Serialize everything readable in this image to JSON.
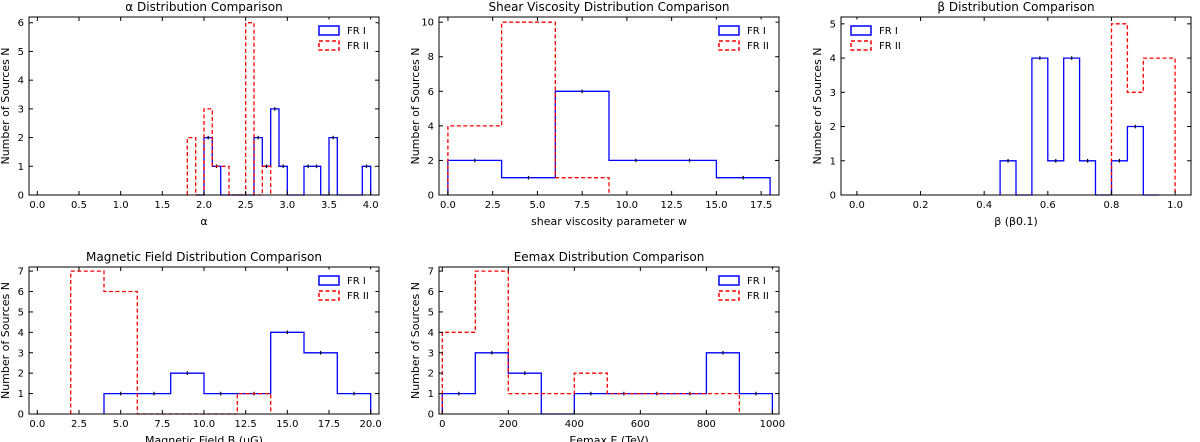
{
  "series_style": {
    "fr1_color": "#0000ff",
    "fr2_color": "#ff0000"
  },
  "chart_data": [
    {
      "type": "histogram",
      "title": "α Distribution Comparison",
      "xlabel": "α",
      "ylabel": "Number of Sources N",
      "xlim": [
        -0.1,
        4.1
      ],
      "ylim": [
        0,
        6.2
      ],
      "xticks": [
        0.0,
        0.5,
        1.0,
        1.5,
        2.0,
        2.5,
        3.0,
        3.5,
        4.0
      ],
      "xtick_labels": [
        "0.0",
        "0.5",
        "1.0",
        "1.5",
        "2.0",
        "2.5",
        "3.0",
        "3.5",
        "4.0"
      ],
      "yticks": [
        0,
        1,
        2,
        3,
        4,
        5,
        6
      ],
      "ytick_labels": [
        "0",
        "1",
        "2",
        "3",
        "4",
        "5",
        "6"
      ],
      "legend": {
        "position": "top-right",
        "entries": [
          "FR I",
          "FR II"
        ]
      },
      "series": [
        {
          "name": "FR I",
          "style": "solid",
          "bins": [
            1.9,
            2.0,
            2.1,
            2.2,
            2.3,
            2.4,
            2.5,
            2.6,
            2.7,
            2.8,
            2.9,
            3.0,
            3.1,
            3.2,
            3.3,
            3.4,
            3.5,
            3.6,
            3.7,
            3.8,
            3.9,
            4.0
          ],
          "counts": [
            0,
            2,
            1,
            0,
            0,
            0,
            0,
            2,
            1,
            3,
            1,
            0,
            0,
            1,
            1,
            0,
            2,
            0,
            0,
            0,
            1
          ]
        },
        {
          "name": "FR II",
          "style": "dashed",
          "bins": [
            1.8,
            1.9,
            2.0,
            2.1,
            2.2,
            2.3,
            2.4,
            2.5,
            2.6,
            2.7,
            2.8
          ],
          "counts": [
            2,
            0,
            3,
            1,
            1,
            0,
            0,
            6,
            0,
            1
          ]
        }
      ]
    },
    {
      "type": "histogram",
      "title": "Shear Viscosity Distribution Comparison",
      "xlabel": "shear viscosity parameter w",
      "ylabel": "Number of Sources N",
      "xlim": [
        -0.5,
        18.5
      ],
      "ylim": [
        0,
        10.3
      ],
      "xticks": [
        0.0,
        2.5,
        5.0,
        7.5,
        10.0,
        12.5,
        15.0,
        17.5
      ],
      "xtick_labels": [
        "0.0",
        "2.5",
        "5.0",
        "7.5",
        "10.0",
        "12.5",
        "15.0",
        "17.5"
      ],
      "yticks": [
        0,
        2,
        4,
        6,
        8,
        10
      ],
      "ytick_labels": [
        "0",
        "2",
        "4",
        "6",
        "8",
        "10"
      ],
      "legend": {
        "position": "top-right",
        "entries": [
          "FR I",
          "FR II"
        ]
      },
      "series": [
        {
          "name": "FR I",
          "style": "solid",
          "bins": [
            0,
            3,
            6,
            9,
            12,
            15,
            18
          ],
          "counts": [
            2,
            1,
            6,
            2,
            2,
            1
          ]
        },
        {
          "name": "FR II",
          "style": "dashed",
          "bins": [
            0,
            3,
            6,
            9
          ],
          "counts": [
            4,
            10,
            1
          ]
        }
      ]
    },
    {
      "type": "histogram",
      "title": "β Distribution Comparison",
      "xlabel": "β (β0.1)",
      "ylabel": "Number of Sources N",
      "xlim": [
        -0.05,
        1.05
      ],
      "ylim": [
        0,
        5.2
      ],
      "xticks": [
        0.0,
        0.2,
        0.4,
        0.6,
        0.8,
        1.0
      ],
      "xtick_labels": [
        "0.0",
        "0.2",
        "0.4",
        "0.6",
        "0.8",
        "1.0"
      ],
      "yticks": [
        0,
        1,
        2,
        3,
        4,
        5
      ],
      "ytick_labels": [
        "0",
        "1",
        "2",
        "3",
        "4",
        "5"
      ],
      "legend": {
        "position": "top-left",
        "entries": [
          "FR I",
          "FR II"
        ]
      },
      "series": [
        {
          "name": "FR I",
          "style": "solid",
          "bins": [
            0.45,
            0.5,
            0.55,
            0.6,
            0.65,
            0.7,
            0.75,
            0.8,
            0.85,
            0.9,
            0.95
          ],
          "counts": [
            1,
            0,
            4,
            1,
            4,
            1,
            0,
            1,
            2,
            0
          ]
        },
        {
          "name": "FR II",
          "style": "dashed",
          "bins": [
            0.8,
            0.85,
            0.9,
            1.0
          ],
          "counts": [
            5,
            3,
            4
          ]
        }
      ]
    },
    {
      "type": "histogram",
      "title": "Magnetic Field Distribution Comparison",
      "xlabel": "Magnetic Field B (μG)",
      "ylabel": "Number of Sources N",
      "xlim": [
        -0.5,
        20.5
      ],
      "ylim": [
        0,
        7.2
      ],
      "xticks": [
        0.0,
        2.5,
        5.0,
        7.5,
        10.0,
        12.5,
        15.0,
        17.5,
        20.0
      ],
      "xtick_labels": [
        "0.0",
        "2.5",
        "5.0",
        "7.5",
        "10.0",
        "12.5",
        "15.0",
        "17.5",
        "20.0"
      ],
      "yticks": [
        0,
        1,
        2,
        3,
        4,
        5,
        6,
        7
      ],
      "ytick_labels": [
        "0",
        "1",
        "2",
        "3",
        "4",
        "5",
        "6",
        "7"
      ],
      "legend": {
        "position": "top-right",
        "entries": [
          "FR I",
          "FR II"
        ]
      },
      "series": [
        {
          "name": "FR I",
          "style": "solid",
          "bins": [
            4,
            6,
            8,
            10,
            12,
            14,
            16,
            18,
            20
          ],
          "counts": [
            1,
            1,
            2,
            1,
            1,
            4,
            3,
            1
          ]
        },
        {
          "name": "FR II",
          "style": "dashed",
          "bins": [
            2,
            4,
            6,
            8,
            10,
            12,
            14
          ],
          "counts": [
            7,
            6,
            0,
            0,
            0,
            1
          ]
        }
      ]
    },
    {
      "type": "histogram",
      "title": "Eemax Distribution Comparison",
      "xlabel": "Eemax E (TeV)",
      "ylabel": "Number of Sources N",
      "xlim": [
        -10,
        1020
      ],
      "ylim": [
        0,
        7.2
      ],
      "xticks": [
        0,
        200,
        400,
        600,
        800,
        1000
      ],
      "xtick_labels": [
        "0",
        "200",
        "400",
        "600",
        "800",
        "1000"
      ],
      "yticks": [
        0,
        1,
        2,
        3,
        4,
        5,
        6,
        7
      ],
      "ytick_labels": [
        "0",
        "1",
        "2",
        "3",
        "4",
        "5",
        "6",
        "7"
      ],
      "legend": {
        "position": "top-right",
        "entries": [
          "FR I",
          "FR II"
        ]
      },
      "series": [
        {
          "name": "FR I",
          "style": "solid",
          "bins": [
            0,
            100,
            200,
            300,
            400,
            500,
            600,
            700,
            800,
            900,
            1000
          ],
          "counts": [
            1,
            3,
            2,
            0,
            1,
            1,
            1,
            1,
            3,
            1
          ]
        },
        {
          "name": "FR II",
          "style": "dashed",
          "bins": [
            0,
            100,
            200,
            300,
            400,
            500,
            600,
            700,
            800,
            900
          ],
          "counts": [
            4,
            7,
            1,
            1,
            2,
            1,
            1,
            1,
            1
          ]
        }
      ]
    }
  ]
}
